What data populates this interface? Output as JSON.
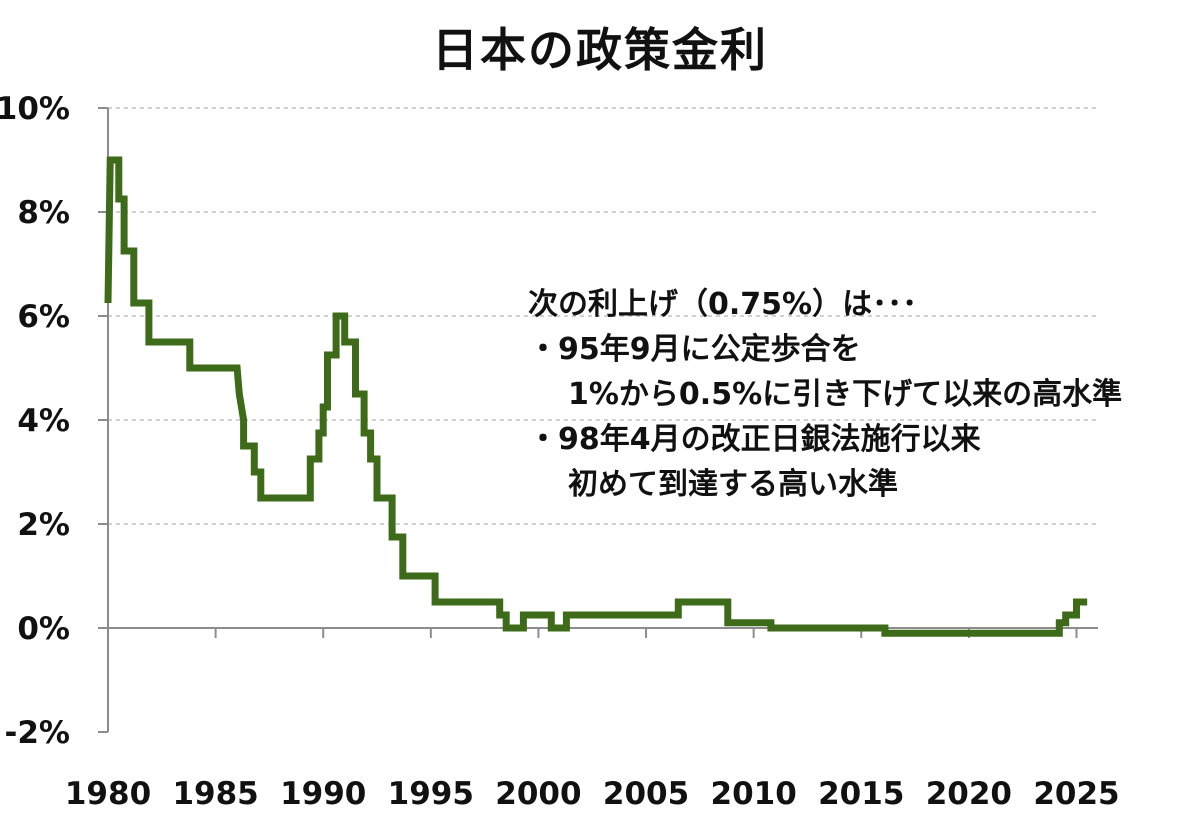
{
  "chart_data": {
    "type": "line",
    "title": "日本の政策金利",
    "xlabel": "",
    "ylabel": "",
    "xlim": [
      1980,
      2026
    ],
    "ylim": [
      -2,
      10
    ],
    "grid": true,
    "x_ticks": [
      1980,
      1985,
      1990,
      1995,
      2000,
      2005,
      2010,
      2015,
      2020,
      2025
    ],
    "x_tick_labels": [
      "1980",
      "1985",
      "1990",
      "1995",
      "2000",
      "2005",
      "2010",
      "2015",
      "2020",
      "2025"
    ],
    "y_ticks": [
      -2,
      0,
      2,
      4,
      6,
      8,
      10
    ],
    "y_tick_labels": [
      "-2%",
      "0%",
      "2%",
      "4%",
      "6%",
      "8%",
      "10%"
    ],
    "line_color": "#3d6b1a",
    "series": [
      {
        "x": [
          1980.0,
          1980.1,
          1980.3,
          1980.5,
          1980.5,
          1980.6,
          1980.6,
          1980.75,
          1980.75,
          1981.0,
          1981.0,
          1981.2,
          1981.2,
          1981.9,
          1981.9,
          1983.8,
          1983.8,
          1986.0,
          1986.0,
          1986.1,
          1986.1,
          1986.3,
          1986.3,
          1986.8,
          1986.8,
          1987.1,
          1987.1,
          1989.4,
          1989.4,
          1989.8,
          1989.8,
          1990.0,
          1990.0,
          1990.2,
          1990.2,
          1990.6,
          1990.6,
          1991.0,
          1991.0,
          1991.5,
          1991.5,
          1991.9,
          1991.9,
          1992.2,
          1992.2,
          1992.5,
          1992.5,
          1993.2,
          1993.2,
          1993.7,
          1993.7,
          1995.2,
          1995.2,
          1995.6,
          1995.6,
          1998.2,
          1998.2,
          1998.5,
          1998.5,
          1999.3,
          1999.3,
          2000.6,
          2000.6,
          2001.1,
          2001.1,
          2001.3,
          2001.3,
          2006.5,
          2006.5,
          2007.1,
          2007.1,
          2008.8,
          2008.8,
          2009.0,
          2009.0,
          2010.8,
          2010.8,
          2016.1,
          2016.1,
          2024.2,
          2024.2,
          2024.5,
          2024.5,
          2025.0,
          2025.0,
          2025.5
        ],
        "y": [
          6.25,
          9.0,
          9.0,
          9.0,
          8.25,
          8.25,
          8.25,
          8.25,
          7.25,
          7.25,
          7.25,
          7.25,
          6.25,
          6.25,
          5.5,
          5.5,
          5.0,
          5.0,
          5.0,
          4.5,
          4.5,
          4.0,
          3.5,
          3.5,
          3.0,
          3.0,
          2.5,
          2.5,
          3.25,
          3.25,
          3.75,
          3.75,
          4.25,
          4.25,
          5.25,
          5.25,
          6.0,
          6.0,
          5.5,
          5.5,
          4.5,
          4.5,
          3.75,
          3.75,
          3.25,
          3.25,
          2.5,
          2.5,
          1.75,
          1.75,
          1.0,
          1.0,
          0.5,
          0.5,
          0.5,
          0.5,
          0.25,
          0.25,
          0.0,
          0.0,
          0.25,
          0.25,
          0.0,
          0.0,
          0.0,
          0.0,
          0.25,
          0.25,
          0.5,
          0.5,
          0.5,
          0.5,
          0.1,
          0.1,
          0.1,
          0.1,
          0.0,
          0.0,
          -0.1,
          -0.1,
          0.1,
          0.1,
          0.25,
          0.25,
          0.5,
          0.5
        ]
      }
    ],
    "annotation": {
      "heading": "次の利上げ（0.75%）は･･･",
      "items": [
        "・95年9月に公定歩合を",
        "1%から0.5%に引き下げて以来の高水準",
        "・98年4月の改正日銀法施行以来",
        "初めて到達する高い水準"
      ]
    }
  }
}
